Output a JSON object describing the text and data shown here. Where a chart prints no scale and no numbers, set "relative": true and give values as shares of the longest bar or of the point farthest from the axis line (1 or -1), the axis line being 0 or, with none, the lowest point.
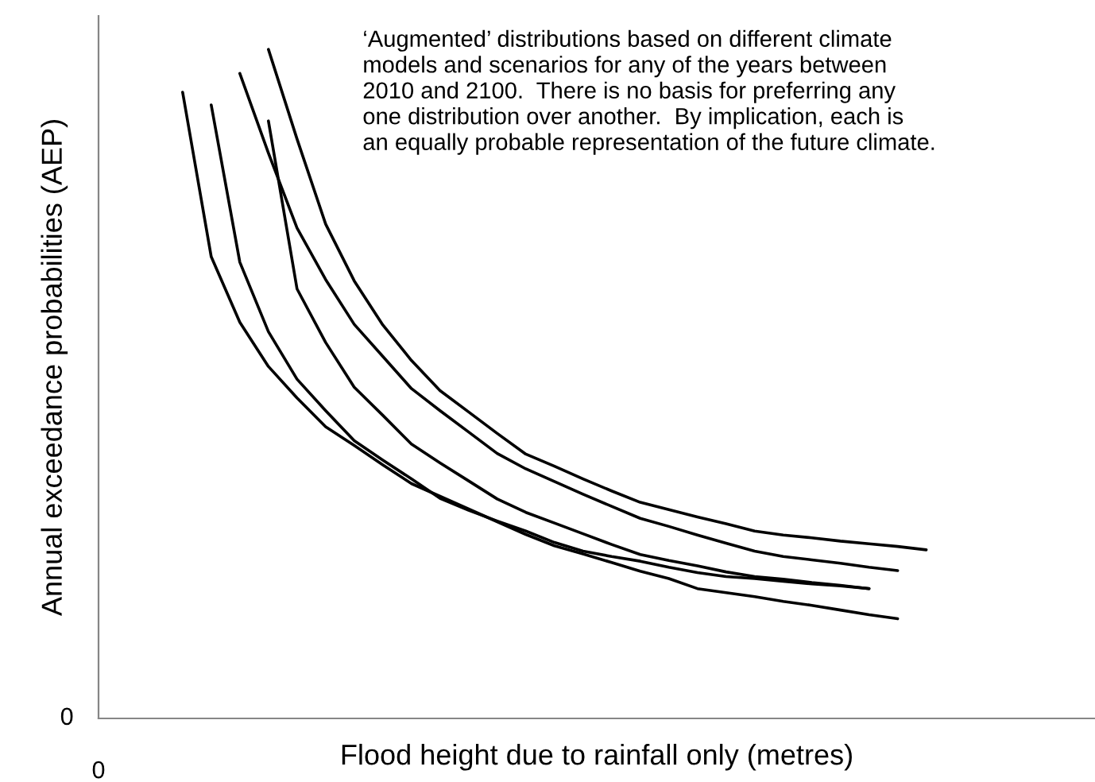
{
  "chart_data": {
    "type": "line",
    "relative": true,
    "xlabel": "Flood height due to rainfall only (metres)",
    "ylabel": "Annual exceedance probabilities (AEP)",
    "annotations": [
      "‘Augmented’ distributions based on different climate\nmodels and scenarios for any of the years between\n2010 and 2100.  There is no basis for preferring any\none distribution over another.  By implication, each is\nan equally probable representation of the future climate.",
      "0",
      "0"
    ],
    "categories": [
      null,
      null,
      null,
      null,
      null,
      null,
      null,
      null,
      null,
      null,
      null,
      null,
      null,
      null,
      null,
      null,
      null,
      null,
      null,
      null,
      null,
      null,
      null,
      null,
      null,
      null,
      null
    ],
    "series": [
      {
        "color": "#000000",
        "values": [
          null,
          null,
          null,
          1.0,
          0.866,
          0.739,
          0.654,
          0.588,
          0.535,
          0.49,
          0.458,
          0.426,
          0.395,
          0.377,
          0.358,
          0.34,
          0.323,
          0.312,
          0.301,
          0.291,
          0.28,
          0.274,
          0.27,
          0.265,
          0.261,
          0.257,
          0.252
        ]
      },
      {
        "color": "#000000",
        "values": [
          null,
          null,
          0.964,
          0.845,
          0.733,
          0.656,
          0.589,
          0.541,
          0.493,
          0.46,
          0.428,
          0.396,
          0.373,
          0.354,
          0.335,
          0.317,
          0.299,
          0.287,
          0.274,
          0.262,
          0.25,
          0.242,
          0.237,
          0.232,
          0.226,
          0.221,
          null
        ]
      },
      {
        "color": "#000000",
        "values": [
          null,
          null,
          null,
          0.893,
          0.642,
          0.562,
          0.495,
          0.453,
          0.41,
          0.382,
          0.355,
          0.328,
          0.308,
          0.292,
          0.276,
          0.26,
          0.245,
          0.236,
          0.228,
          0.219,
          0.212,
          0.208,
          0.203,
          0.199,
          0.194,
          null,
          null
        ]
      },
      {
        "color": "#000000",
        "values": [
          null,
          0.917,
          0.682,
          0.578,
          0.507,
          0.46,
          0.415,
          0.386,
          0.358,
          0.329,
          0.311,
          0.295,
          0.28,
          0.263,
          0.25,
          0.242,
          0.235,
          0.226,
          0.218,
          0.212,
          0.209,
          0.205,
          0.201,
          0.198,
          0.194,
          null,
          null
        ]
      },
      {
        "color": "#000000",
        "values": [
          0.936,
          0.69,
          0.592,
          0.526,
          0.479,
          0.436,
          0.408,
          0.379,
          0.351,
          0.332,
          0.313,
          0.294,
          0.275,
          0.258,
          0.246,
          0.233,
          0.22,
          0.209,
          0.194,
          0.188,
          0.182,
          0.175,
          0.169,
          0.162,
          0.155,
          0.149,
          null
        ]
      }
    ]
  }
}
